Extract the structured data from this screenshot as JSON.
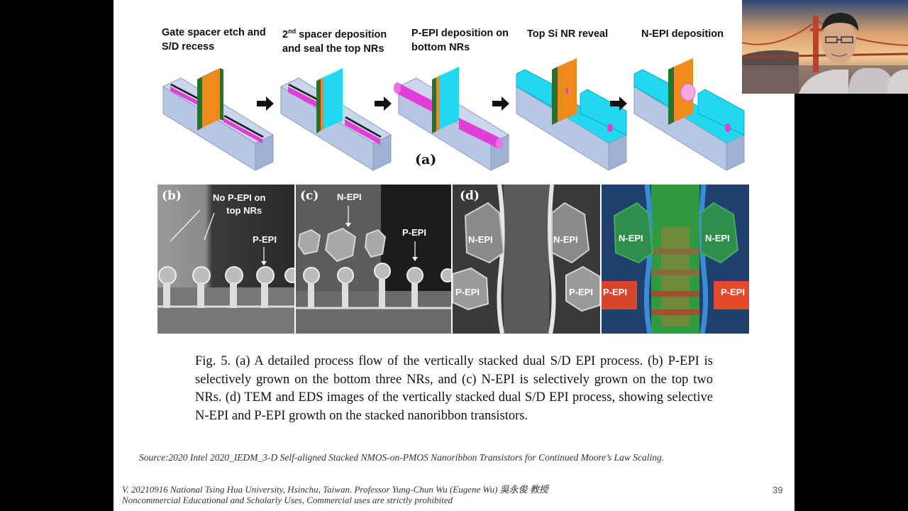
{
  "slide": {
    "steps": [
      {
        "line1": "Gate spacer etch and",
        "line2": "S/D recess"
      },
      {
        "line1_pre": "2",
        "line1_sup": "nd",
        "line1_post": " spacer deposition",
        "line2": "and  seal the top NRs"
      },
      {
        "line1": "P-EPI deposition on",
        "line2": "bottom NRs"
      },
      {
        "line1": "Top Si NR reveal",
        "line2": ""
      },
      {
        "line1": "N-EPI deposition",
        "line2": ""
      }
    ],
    "label_a": "(a)",
    "panels": {
      "b": {
        "letter": "(b)",
        "note_line1": "No P-EPI on",
        "note_line2": "top NRs",
        "p_epi": "P-EPI"
      },
      "c": {
        "letter": "(c)",
        "n_epi": "N-EPI",
        "p_epi": "P-EPI"
      },
      "d": {
        "letter": "(d)",
        "n_epi_left": "N-EPI",
        "n_epi_right": "N-EPI",
        "p_epi_left": "P-EPI",
        "p_epi_right": "P-EPI"
      },
      "eds": {
        "n_epi_left": "N-EPI",
        "n_epi_right": "N-EPI",
        "p_epi_left": "P-EPI",
        "p_epi_right": "P-EPI"
      }
    },
    "caption": "Fig. 5. (a) A detailed process flow of the vertically stacked dual S/D EPI process. (b) P-EPI is selectively grown on the bottom three NRs, and (c) N-EPI is selectively grown  on the top two NRs. (d) TEM and EDS images of the vertically stacked dual S/D EPI  process, showing selective  N-EPI and P-EPI growth on the stacked nanoribbon  transistors.",
    "source": "Source:2020 Intel 2020_IEDM_3-D Self-aligned Stacked NMOS-on-PMOS Nanoribbon Transistors for Continued Moore’s Law Scaling.",
    "footer_line1": "V. 20210916 National Tsing Hua University, Hsinchu, Taiwan. Professor Yung-Chun Wu (Eugene Wu) 吳永俊 教授",
    "footer_line2": "Noncommercial Educational and Scholarly Uses, Commercial uses are strictly prohibited",
    "page_number": "39"
  },
  "colors": {
    "block_top": "#c9d6ec",
    "block_side": "#9fb2d6",
    "gate_orange": "#f08a1c",
    "spacer_green": "#2f6e2a",
    "cyan": "#22d8ee",
    "magenta": "#e23dd6",
    "pink_epi": "#f6a8e6",
    "arrow": "#111111"
  }
}
